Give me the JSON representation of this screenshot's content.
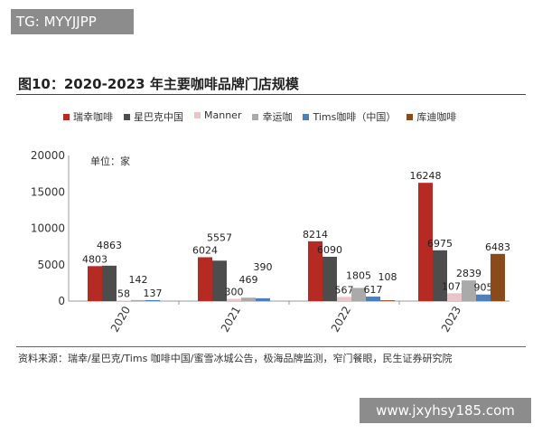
{
  "watermark_top": "TG: MYYJJPP",
  "watermark_bottom": "www.jxyhsy185.com",
  "source": "资料来源：瑞幸/星巴克/Tims 咖啡中国/蜜雪冰城公告，极海品牌监测，窄门餐眼，民生证券研究院",
  "chart_data": {
    "type": "bar",
    "title": "图10：2020-2023 年主要咖啡品牌门店规模",
    "ylabel": "单位：家",
    "categories": [
      "2020",
      "2021",
      "2022",
      "2023"
    ],
    "ylim": [
      0,
      20000
    ],
    "yticks": [
      0,
      5000,
      10000,
      15000,
      20000
    ],
    "legend_position": "top",
    "grid": false,
    "series": [
      {
        "name": "瑞幸咖啡",
        "color": "#b52a22",
        "values": [
          4803,
          6024,
          8214,
          16248
        ]
      },
      {
        "name": "星巴克中国",
        "color": "#4d4d4d",
        "values": [
          4863,
          5557,
          6090,
          6975
        ]
      },
      {
        "name": "Manner",
        "color": "#e8c5c8",
        "values": [
          58,
          300,
          567,
          1075
        ]
      },
      {
        "name": "幸运咖",
        "color": "#aaaaaa",
        "values": [
          142,
          469,
          1805,
          2839
        ]
      },
      {
        "name": "Tims咖啡（中国）",
        "color": "#4f7fb8",
        "values": [
          137,
          390,
          617,
          905
        ]
      },
      {
        "name": "库迪咖啡",
        "color": "#8b4a1c",
        "values": [
          null,
          null,
          108,
          6483
        ]
      }
    ]
  }
}
